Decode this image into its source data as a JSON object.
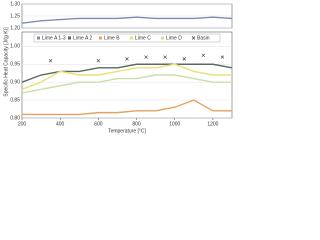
{
  "chart_data": {
    "type": "line",
    "x_label": "Temperature [°C]",
    "y_label": "Specific Heat Capacity [J/(g K)]",
    "x": [
      200,
      300,
      400,
      500,
      600,
      700,
      800,
      900,
      1000,
      1100,
      1200,
      1300
    ],
    "xlim": [
      200,
      1300
    ],
    "xticks": [
      200,
      400,
      600,
      800,
      1000,
      1200
    ],
    "ylim": [
      0.8,
      1.04
    ],
    "yticks": [
      {
        "value": 0.8,
        "label": "0.80"
      },
      {
        "value": 0.85,
        "label": "0.85"
      },
      {
        "value": 0.9,
        "label": "0.90"
      },
      {
        "value": 0.95,
        "label": "0.95"
      },
      {
        "value": 1.0,
        "label": "1.00"
      }
    ],
    "y2lim": [
      1.2,
      1.3
    ],
    "y2ticks": [
      {
        "value": 1.2,
        "label": "1.20"
      },
      {
        "value": 1.25,
        "label": "1.25"
      },
      {
        "value": 1.3,
        "label": "1.30"
      }
    ],
    "grid": true,
    "series": [
      {
        "name": "Lime A 1-3",
        "color": "#7a8fb0",
        "axis": "y2",
        "values": [
          1.22,
          1.23,
          1.235,
          1.24,
          1.24,
          1.24,
          1.245,
          1.24,
          1.24,
          1.24,
          1.245,
          1.24
        ]
      },
      {
        "name": "Lime A 2",
        "color": "#5a6a60",
        "values": [
          0.9,
          0.92,
          0.93,
          0.93,
          0.94,
          0.94,
          0.95,
          0.95,
          0.95,
          0.95,
          0.95,
          0.94
        ]
      },
      {
        "name": "Lime B",
        "color": "#e8a060",
        "values": [
          0.81,
          0.81,
          0.81,
          0.81,
          0.815,
          0.815,
          0.82,
          0.82,
          0.83,
          0.85,
          0.82,
          0.82
        ]
      },
      {
        "name": "Lime C",
        "color": "#e8e078",
        "values": [
          0.88,
          0.9,
          0.93,
          0.92,
          0.92,
          0.93,
          0.94,
          0.94,
          0.95,
          0.93,
          0.92,
          0.92
        ]
      },
      {
        "name": "Lime D",
        "color": "#c8e0a8",
        "values": [
          0.87,
          0.88,
          0.89,
          0.9,
          0.9,
          0.91,
          0.91,
          0.92,
          0.92,
          0.91,
          0.9,
          0.9
        ]
      },
      {
        "name": "Basin",
        "color": "#333333",
        "x": [
          350,
          600,
          750,
          850,
          950,
          1050,
          1150,
          1250
        ],
        "values": [
          0.96,
          0.96,
          0.965,
          0.97,
          0.97,
          0.965,
          0.975,
          0.97
        ]
      }
    ]
  }
}
